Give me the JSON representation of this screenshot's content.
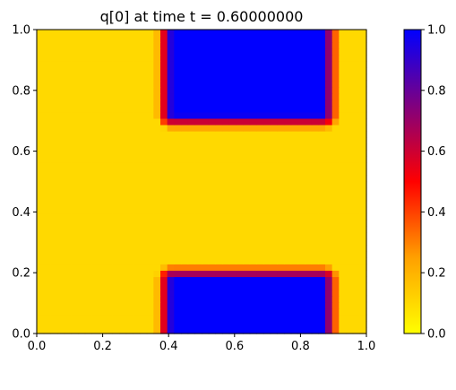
{
  "chart_data": {
    "type": "heatmap",
    "title": "q[0] at time t =     0.60000000",
    "xlim": [
      0,
      1
    ],
    "ylim": [
      0,
      1
    ],
    "x_ticks": [
      "0.0",
      "0.2",
      "0.4",
      "0.6",
      "0.8",
      "1.0"
    ],
    "y_ticks": [
      "0.0",
      "0.2",
      "0.4",
      "0.6",
      "0.8",
      "1.0"
    ],
    "colorbar": {
      "range": [
        0,
        1
      ],
      "ticks": [
        "0.0",
        "0.2",
        "0.4",
        "0.6",
        "0.8",
        "1.0"
      ],
      "stops": [
        {
          "value": 0.0,
          "color": "#ffff00"
        },
        {
          "value": 0.25,
          "color": "#ffa000"
        },
        {
          "value": 0.5,
          "color": "#ff0000"
        },
        {
          "value": 0.75,
          "color": "#80007f"
        },
        {
          "value": 1.0,
          "color": "#0000ff"
        }
      ]
    },
    "background_value": 0.1,
    "grid": "48x48 cells",
    "blocks": [
      {
        "name": "top",
        "x": [
          0.41,
          0.87
        ],
        "y": [
          0.72,
          1.0
        ],
        "value": 1.0
      },
      {
        "name": "bottom",
        "x": [
          0.41,
          0.87
        ],
        "y": [
          0.0,
          0.18
        ],
        "value": 1.0
      }
    ],
    "edge_transition_width": 0.05
  }
}
